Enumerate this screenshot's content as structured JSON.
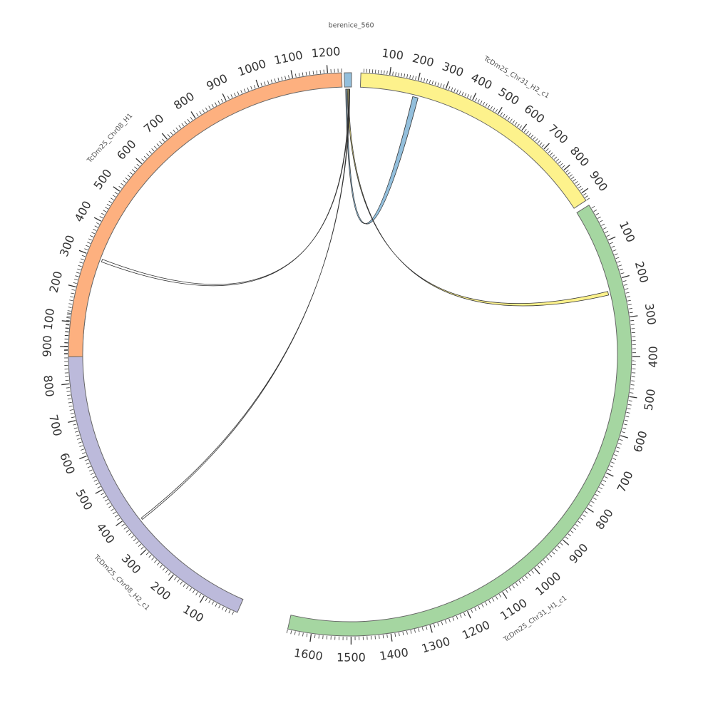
{
  "chart_data": {
    "type": "chord",
    "segments": [
      {
        "name": "berenice_560",
        "length": 12,
        "color": "#93bfdc",
        "tick_step": 0,
        "label_step": 0
      },
      {
        "name": "TcDm25_Chr31_H2_c1",
        "length": 930,
        "color": "#fdf28c",
        "tick_step": 10,
        "label_step": 100
      },
      {
        "name": "TcDm25_Chr31_H1_c1",
        "length": 1660,
        "color": "#a5d6a1",
        "tick_step": 10,
        "label_step": 100
      },
      {
        "name": "TcDm25_Chr08_H2_c1",
        "length": 990,
        "color": "#bcbadb",
        "tick_step": 10,
        "label_step": 100
      },
      {
        "name": "TcDm25_Chr08_H1",
        "length": 1240,
        "color": "#fdb07f",
        "tick_step": 10,
        "label_step": 100
      }
    ],
    "links": [
      {
        "source": "berenice_560",
        "source_start": 2,
        "source_end": 4,
        "target": "TcDm25_Chr31_H2_c1",
        "target_start": 195,
        "target_end": 215,
        "color": "#93bfdc"
      },
      {
        "source": "berenice_560",
        "source_start": 5,
        "source_end": 7,
        "target": "TcDm25_Chr31_H1_c1",
        "target_start": 225,
        "target_end": 235,
        "color": "#fdf28c"
      },
      {
        "source": "berenice_560",
        "source_start": 7,
        "source_end": 8,
        "target": "TcDm25_Chr08_H1",
        "target_start": 292,
        "target_end": 300,
        "color": "#ffffff"
      },
      {
        "source": "berenice_560",
        "source_start": 8,
        "source_end": 9,
        "target": "TcDm25_Chr08_H2_c1",
        "target_start": 370,
        "target_end": 375,
        "color": "#ffffff"
      }
    ]
  }
}
